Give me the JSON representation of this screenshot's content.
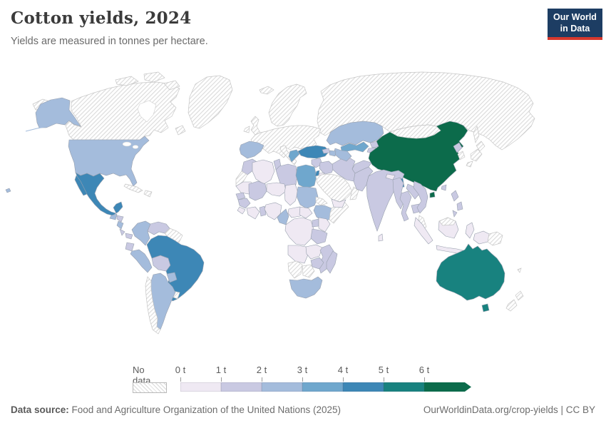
{
  "header": {
    "title": "Cotton yields, 2024",
    "subtitle": "Yields are measured in tonnes per hectare.",
    "logo": {
      "line1": "Our World",
      "line2": "in Data",
      "bg": "#1d3d63",
      "accent": "#d7382d"
    }
  },
  "legend": {
    "no_data_label": "No data",
    "ticks": [
      "0 t",
      "1 t",
      "2 t",
      "3 t",
      "4 t",
      "5 t",
      "6 t"
    ],
    "bins": [
      {
        "id": "b1",
        "range": "0–1 t",
        "color": "#efe9f3"
      },
      {
        "id": "b2",
        "range": "1–2 t",
        "color": "#c9c9e2"
      },
      {
        "id": "b3",
        "range": "2–3 t",
        "color": "#a4bcdc"
      },
      {
        "id": "b4",
        "range": "3–4 t",
        "color": "#6fa7cd"
      },
      {
        "id": "b5",
        "range": "4–5 t",
        "color": "#3d87b6"
      },
      {
        "id": "b6",
        "range": "5–6 t",
        "color": "#18827f"
      },
      {
        "id": "b7",
        "range": "6+ t",
        "color": "#0c6b4b"
      }
    ]
  },
  "map": {
    "border_color": "#98a0ae",
    "nodata_stroke": "#c6c6c6",
    "water_color": "#ffffff",
    "regions": {
      "russia": "nodata",
      "canada": "nodata",
      "arctic-islands-1": "nodata",
      "arctic-islands-2": "nodata",
      "arctic-islands-3": "nodata",
      "newfoundland": "nodata",
      "greenland": "nodata",
      "chukotka": "nodata",
      "alaska": "b3",
      "aleutians": "b3",
      "usa": "b3",
      "hawaii": "b3",
      "mexico": "b5",
      "baja": "b5",
      "guatemala": "b3",
      "honduras": "b2",
      "nicaragua": "b3",
      "costa-rica": "b2",
      "panama": "b2",
      "cuba": "nodata",
      "hispaniola": "nodata",
      "colombia": "b3",
      "venezuela": "b2",
      "guyanas": "nodata",
      "ecuador": "b2",
      "peru": "b3",
      "bolivia": "b2",
      "brazil": "b5",
      "paraguay": "b3",
      "uruguay": "nodata",
      "argentina": "b3",
      "chile": "nodata",
      "iceland": "nodata",
      "uk": "nodata",
      "ireland": "nodata",
      "scandinavia": "nodata",
      "europe-mainland": "nodata",
      "italy": "nodata",
      "sicily": "nodata",
      "iberia": "b3",
      "greece": "b4",
      "turkey": "b5",
      "syria": "b2",
      "iraq": "b2",
      "israel": "b5",
      "jordan": "b1",
      "saudi-arabia": "nodata",
      "yemen": "b1",
      "oman": "nodata",
      "iran": "b2",
      "afghanistan": "b2",
      "pakistan": "b2",
      "kazakhstan": "b3",
      "uzbekistan": "b4",
      "turkmenistan": "b3",
      "kyrgyzstan": "b2",
      "tajikistan": "b2",
      "georgia": "b2",
      "azerbaijan": "b3",
      "india": "b2",
      "nepal": "b1",
      "bangladesh": "b5",
      "sri-lanka": "b1",
      "china": "b7",
      "hainan": "b7",
      "mongolia": "nodata",
      "north-korea": "b2",
      "south-korea": "nodata",
      "japan-north": "nodata",
      "japan-main": "nodata",
      "japan-south": "nodata",
      "sakhalin": "nodata",
      "taiwan": "b2",
      "myanmar": "b2",
      "thailand": "b2",
      "laos": "b2",
      "cambodia": "b2",
      "vietnam": "b2",
      "malay-peninsula": "nodata",
      "sumatra": "b1",
      "java": "b1",
      "borneo": "b1",
      "malaysia-borneo": "nodata",
      "sulawesi": "b1",
      "philippines-1": "b2",
      "philippines-2": "b2",
      "philippines-3": "b2",
      "west-papua": "b1",
      "papua-new-guinea": "nodata",
      "australia": "b6",
      "tasmania": "b6",
      "new-zealand-north": "nodata",
      "new-zealand-south": "nodata",
      "fiji": "nodata",
      "morocco": "b2",
      "western-sahara": "nodata",
      "mauritania": "b1",
      "algeria": "b1",
      "tunisia": "b2",
      "libya": "b2",
      "egypt": "b4",
      "mali": "b2",
      "niger": "b1",
      "chad": "b1",
      "sudan": "b3",
      "eritrea": "nodata",
      "ethiopia": "b3",
      "somalia": "nodata",
      "senegal": "b2",
      "guinea": "b2",
      "sierra-liberia": "b1",
      "ivory-ghana": "b1",
      "togo-benin": "b2",
      "nigeria": "b1",
      "cameroon": "b3",
      "central-african-republic": "b1",
      "south-sudan": "b1",
      "dr-congo": "b1",
      "uganda": "b2",
      "kenya": "b1",
      "tanzania": "b2",
      "angola": "b1",
      "zambia": "b1",
      "mozambique": "b2",
      "zimbabwe": "b2",
      "namibia": "nodata",
      "botswana": "nodata",
      "south-africa": "b3",
      "madagascar": "b2"
    }
  },
  "footer": {
    "source_label": "Data source:",
    "source_text": " Food and Agriculture Organization of the United Nations (2025)",
    "right_text": "OurWorldinData.org/crop-yields | CC BY"
  },
  "chart_data": {
    "type": "choropleth",
    "title": "Cotton yields, 2024",
    "subtitle": "Yields are measured in tonnes per hectare.",
    "year": 2024,
    "unit": "tonnes per hectare",
    "legend_bins": [
      "0–1 t",
      "1–2 t",
      "2–3 t",
      "3–4 t",
      "4–5 t",
      "5–6 t",
      "6+ t"
    ],
    "no_data_label": "No data",
    "values_by_country_bin": {
      "China": "6+ t",
      "Australia": "5–6 t",
      "Brazil": "4–5 t",
      "Mexico": "4–5 t",
      "Turkey": "4–5 t",
      "Israel": "4–5 t",
      "Bangladesh": "4–5 t",
      "Egypt": "3–4 t",
      "Uzbekistan": "3–4 t",
      "Greece": "3–4 t",
      "United States": "2–3 t",
      "Spain": "2–3 t",
      "Colombia": "2–3 t",
      "Peru": "2–3 t",
      "Argentina": "2–3 t",
      "Paraguay": "2–3 t",
      "Kazakhstan": "2–3 t",
      "Turkmenistan": "2–3 t",
      "Azerbaijan": "2–3 t",
      "Sudan": "2–3 t",
      "Ethiopia": "2–3 t",
      "Cameroon": "2–3 t",
      "South Africa": "2–3 t",
      "Guatemala": "2–3 t",
      "Nicaragua": "2–3 t",
      "India": "1–2 t",
      "Pakistan": "1–2 t",
      "Iran": "1–2 t",
      "Morocco": "1–2 t",
      "Libya": "1–2 t",
      "Mali": "1–2 t",
      "Senegal": "1–2 t",
      "Tanzania": "1–2 t",
      "Mozambique": "1–2 t",
      "Zimbabwe": "1–2 t",
      "Madagascar": "1–2 t",
      "Venezuela": "1–2 t",
      "Bolivia": "1–2 t",
      "Ecuador": "1–2 t",
      "Myanmar": "1–2 t",
      "Thailand": "1–2 t",
      "Vietnam": "1–2 t",
      "Afghanistan": "1–2 t",
      "Syria": "1–2 t",
      "Iraq": "1–2 t",
      "Philippines": "1–2 t",
      "North Korea": "1–2 t",
      "Nigeria": "0–1 t",
      "Niger": "0–1 t",
      "Chad": "0–1 t",
      "DR Congo": "0–1 t",
      "Kenya": "0–1 t",
      "Angola": "0–1 t",
      "Zambia": "0–1 t",
      "Indonesia": "0–1 t",
      "Yemen": "0–1 t",
      "Algeria": "0–1 t",
      "Mauritania": "0–1 t",
      "Nepal": "0–1 t",
      "Jordan": "0–1 t"
    },
    "no_data_countries": [
      "Canada",
      "Greenland",
      "Russia",
      "Mongolia",
      "Japan",
      "South Korea",
      "Saudi Arabia",
      "Oman",
      "Somalia",
      "Namibia",
      "Botswana",
      "Chile",
      "Uruguay",
      "Cuba",
      "Iceland",
      "United Kingdom",
      "Ireland",
      "Norway",
      "Sweden",
      "Finland",
      "France",
      "Germany",
      "Italy",
      "Poland",
      "Ukraine",
      "Malaysia",
      "Papua New Guinea",
      "New Zealand",
      "Western Sahara",
      "Eritrea"
    ]
  }
}
